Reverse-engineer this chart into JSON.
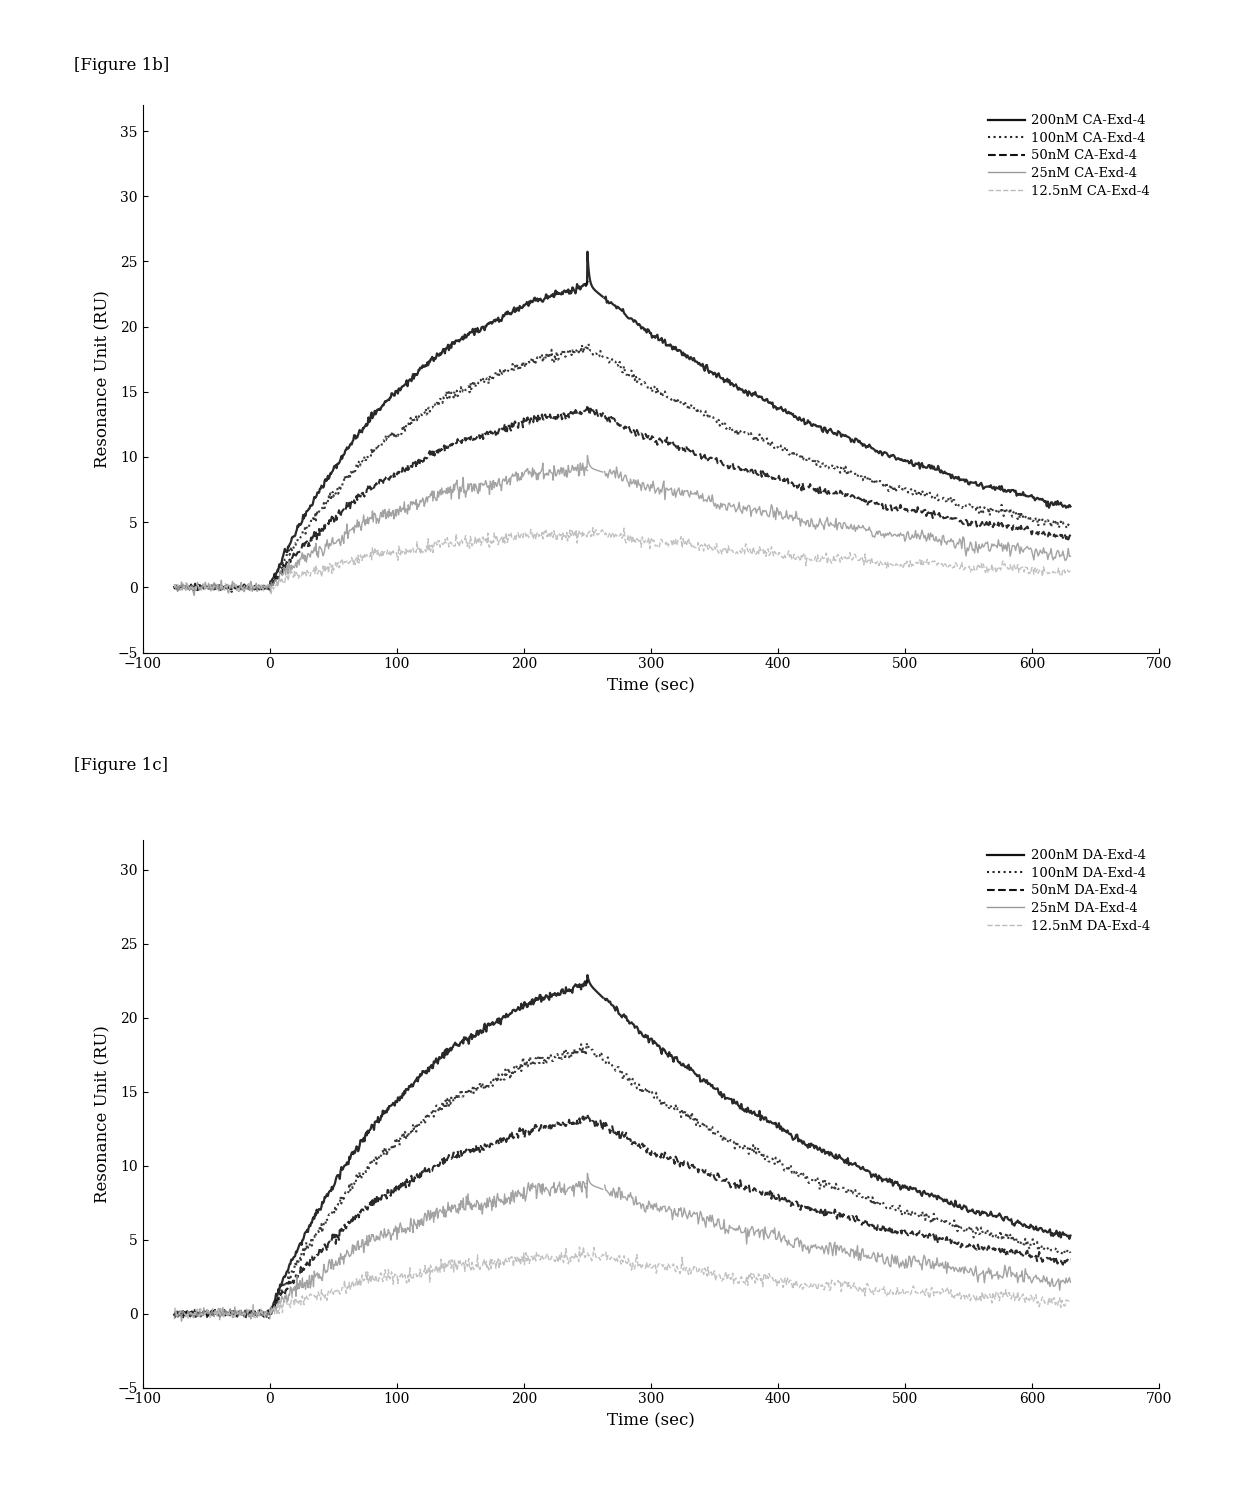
{
  "fig1b": {
    "title": "[Figure 1b]",
    "ylabel": "Resonance Unit (RU)",
    "xlabel": "Time (sec)",
    "xlim": [
      -100,
      700
    ],
    "ylim": [
      -5,
      37
    ],
    "yticks": [
      -5,
      0,
      5,
      10,
      15,
      20,
      25,
      30,
      35
    ],
    "xticks": [
      -100,
      0,
      100,
      200,
      300,
      400,
      500,
      600,
      700
    ],
    "series": [
      {
        "label": "200nM CA-Exd-4",
        "max_ru": 26.5,
        "end_ru": 6.5,
        "color": "#111111",
        "linestyle": "solid",
        "linewidth": 1.6,
        "noise": 0.25,
        "spike": 2.5
      },
      {
        "label": "100nM CA-Exd-4",
        "max_ru": 21.0,
        "end_ru": 5.0,
        "color": "#222222",
        "linestyle": "dotted",
        "linewidth": 1.5,
        "noise": 0.35,
        "spike": 0.0
      },
      {
        "label": "50nM CA-Exd-4",
        "max_ru": 15.5,
        "end_ru": 4.2,
        "color": "#111111",
        "linestyle": "dashed",
        "linewidth": 1.5,
        "noise": 0.3,
        "spike": 0.0
      },
      {
        "label": "25nM CA-Exd-4",
        "max_ru": 10.5,
        "end_ru": 2.8,
        "color": "#999999",
        "linestyle": "solid",
        "linewidth": 1.0,
        "noise": 0.55,
        "spike": 0.9
      },
      {
        "label": "12.5nM CA-Exd-4",
        "max_ru": 4.8,
        "end_ru": 1.5,
        "color": "#bbbbbb",
        "linestyle": "dashed",
        "linewidth": 1.0,
        "noise": 0.45,
        "spike": 0.0
      }
    ],
    "assoc_end": 250,
    "dissoc_end": 630,
    "baseline_start": -75
  },
  "fig1c": {
    "title": "[Figure 1c]",
    "ylabel": "Resonance Unit (RU)",
    "xlabel": "Time (sec)",
    "xlim": [
      -100,
      700
    ],
    "ylim": [
      -5,
      32
    ],
    "yticks": [
      -5,
      0,
      5,
      10,
      15,
      20,
      25,
      30
    ],
    "xticks": [
      -100,
      0,
      100,
      200,
      300,
      400,
      500,
      600,
      700
    ],
    "series": [
      {
        "label": "200nM DA-Exd-4",
        "max_ru": 25.5,
        "end_ru": 5.5,
        "color": "#111111",
        "linestyle": "solid",
        "linewidth": 1.6,
        "noise": 0.25,
        "spike": 0.5
      },
      {
        "label": "100nM DA-Exd-4",
        "max_ru": 20.5,
        "end_ru": 4.5,
        "color": "#222222",
        "linestyle": "dotted",
        "linewidth": 1.5,
        "noise": 0.35,
        "spike": 0.0
      },
      {
        "label": "50nM DA-Exd-4",
        "max_ru": 15.0,
        "end_ru": 3.8,
        "color": "#111111",
        "linestyle": "dashed",
        "linewidth": 1.5,
        "noise": 0.3,
        "spike": 0.0
      },
      {
        "label": "25nM DA-Exd-4",
        "max_ru": 10.0,
        "end_ru": 2.5,
        "color": "#999999",
        "linestyle": "solid",
        "linewidth": 1.0,
        "noise": 0.55,
        "spike": 0.7
      },
      {
        "label": "12.5nM DA-Exd-4",
        "max_ru": 4.5,
        "end_ru": 1.2,
        "color": "#bbbbbb",
        "linestyle": "dashed",
        "linewidth": 1.0,
        "noise": 0.45,
        "spike": 0.0
      }
    ],
    "assoc_end": 250,
    "dissoc_end": 630,
    "baseline_start": -75
  },
  "background_color": "#ffffff",
  "figure_label_fontsize": 12,
  "axis_label_fontsize": 12,
  "tick_fontsize": 10,
  "legend_fontsize": 9.5
}
